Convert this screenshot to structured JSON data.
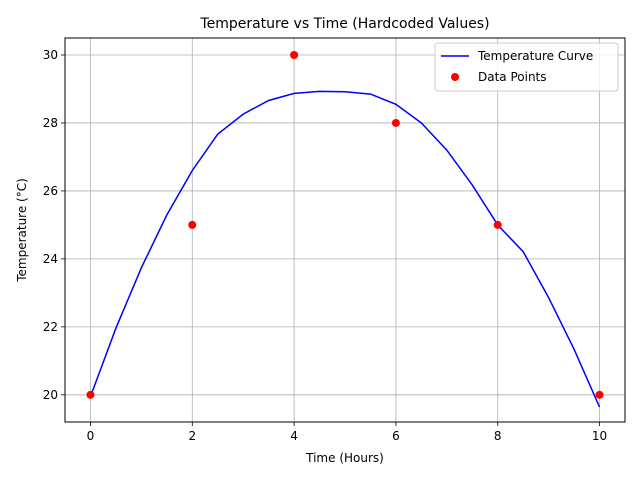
{
  "chart_data": {
    "type": "line",
    "title": "Temperature vs Time (Hardcoded Values)",
    "xlabel": "Time (Hours)",
    "ylabel": "Temperature (°C)",
    "xlim": [
      -0.5,
      10.5
    ],
    "ylim": [
      19.2,
      30.5
    ],
    "xticks": [
      0,
      2,
      4,
      6,
      8,
      10
    ],
    "yticks": [
      20,
      22,
      24,
      26,
      28,
      30
    ],
    "grid": true,
    "legend_position": "top-right",
    "series": [
      {
        "name": "Temperature Curve",
        "kind": "line",
        "color": "#0000ff",
        "x": [
          0,
          0.5,
          1,
          1.5,
          2,
          2.5,
          3,
          3.5,
          4,
          4.5,
          5,
          5.5,
          6,
          6.5,
          7,
          7.5,
          8,
          8.5,
          9,
          9.5,
          10
        ],
        "y": [
          19.95,
          21.96,
          23.74,
          25.29,
          26.6,
          27.67,
          28.26,
          28.66,
          28.87,
          28.93,
          28.92,
          28.85,
          28.55,
          28.0,
          27.2,
          26.17,
          25.0,
          24.21,
          22.86,
          21.34,
          19.64
        ]
      },
      {
        "name": "Data Points",
        "kind": "scatter",
        "color": "#ff0000",
        "x": [
          0,
          2,
          4,
          6,
          8,
          10
        ],
        "y": [
          20,
          25,
          30,
          28,
          25,
          20
        ]
      }
    ]
  }
}
